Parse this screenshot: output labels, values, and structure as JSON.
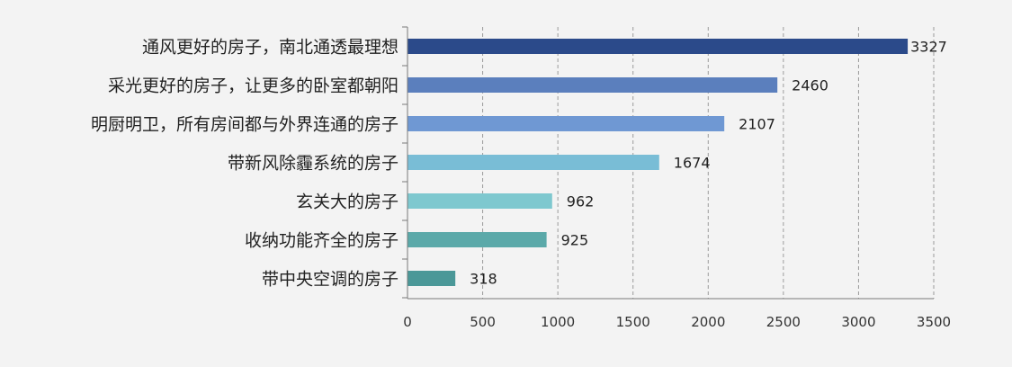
{
  "chart_data": {
    "type": "bar",
    "orientation": "horizontal",
    "categories": [
      "通风更好的房子，南北通透最理想",
      "采光更好的房子，让更多的卧室都朝阳",
      "明厨明卫，所有房间都与外界连通的房子",
      "带新风除霾系统的房子",
      "玄关大的房子",
      "收纳功能齐全的房子",
      "带中央空调的房子"
    ],
    "values": [
      3327,
      2460,
      2107,
      1674,
      962,
      925,
      318
    ],
    "value_labels": [
      "3327",
      "2460",
      "2107",
      "1674",
      "962",
      "925",
      "318"
    ],
    "bar_colors": [
      "#2b4a8a",
      "#5b7fbd",
      "#6f98d3",
      "#79bdd6",
      "#7ec8cf",
      "#5ba9a9",
      "#4b9898"
    ],
    "xlim": [
      0,
      3500
    ],
    "x_ticks": [
      0,
      500,
      1000,
      1500,
      2000,
      2500,
      3000,
      3500
    ],
    "x_tick_labels": [
      "0",
      "500",
      "1000",
      "1500",
      "2000",
      "2500",
      "3000",
      "3500"
    ],
    "xlabel": "",
    "ylabel": "",
    "title": "",
    "grid": "vertical-dashed",
    "legend": "none"
  }
}
